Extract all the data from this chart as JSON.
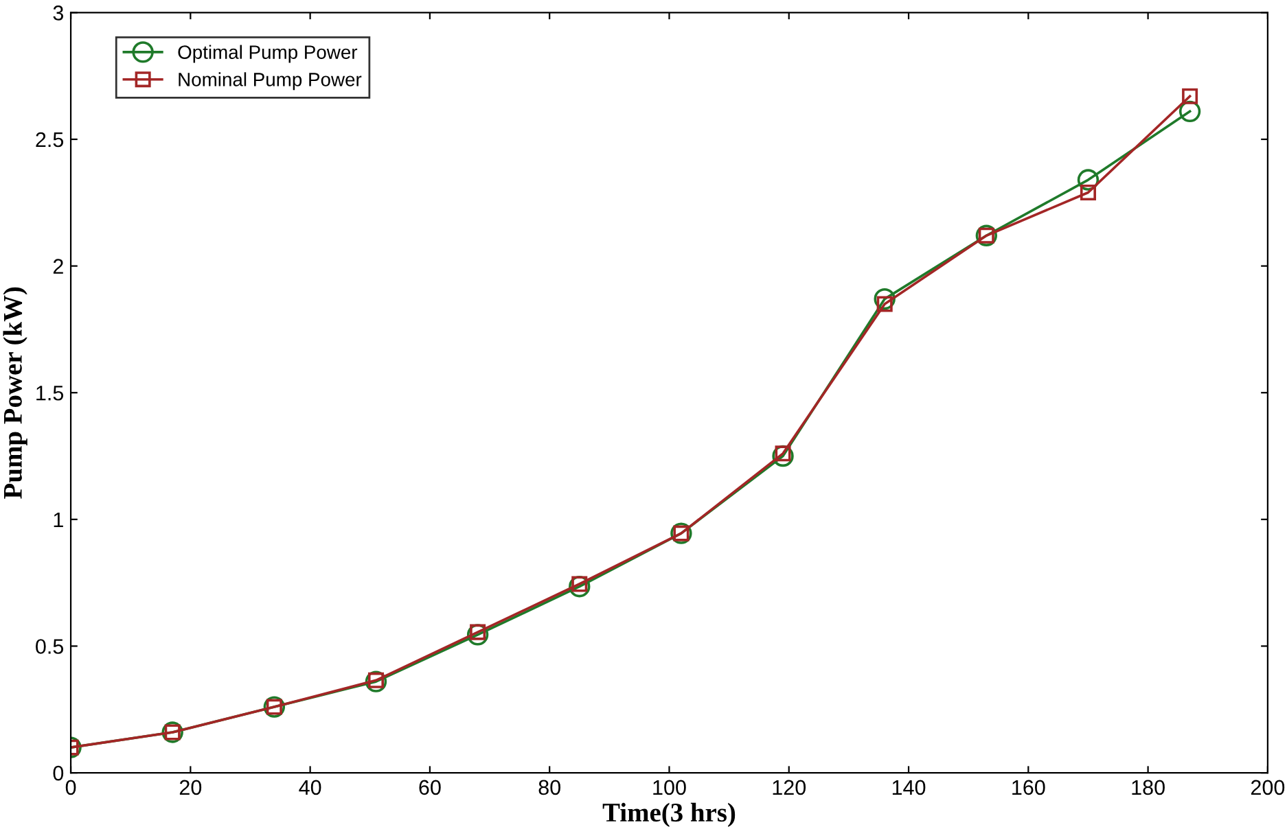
{
  "chart_data": {
    "type": "line",
    "xlabel": "Time(3 hrs)",
    "ylabel": "Pump Power (kW)",
    "x": [
      0,
      17,
      34,
      51,
      68,
      85,
      102,
      119,
      136,
      153,
      170,
      187
    ],
    "series": [
      {
        "name": "Optimal Pump Power",
        "color": "#1f7a2a",
        "marker": "circle",
        "values": [
          0.1,
          0.16,
          0.26,
          0.36,
          0.545,
          0.735,
          0.945,
          1.25,
          1.87,
          2.12,
          2.34,
          2.61
        ]
      },
      {
        "name": "Nominal Pump Power",
        "color": "#a32626",
        "marker": "square",
        "values": [
          0.1,
          0.16,
          0.26,
          0.365,
          0.555,
          0.745,
          0.945,
          1.26,
          1.85,
          2.12,
          2.29,
          2.67
        ]
      }
    ],
    "xlim": [
      0,
      200
    ],
    "xticks": [
      0,
      20,
      40,
      60,
      80,
      100,
      120,
      140,
      160,
      180,
      200
    ],
    "ylim": [
      0,
      3
    ],
    "yticks": [
      0,
      0.5,
      1,
      1.5,
      2,
      2.5,
      3
    ],
    "grid": false,
    "legend": "top left",
    "line_style": "solid"
  }
}
